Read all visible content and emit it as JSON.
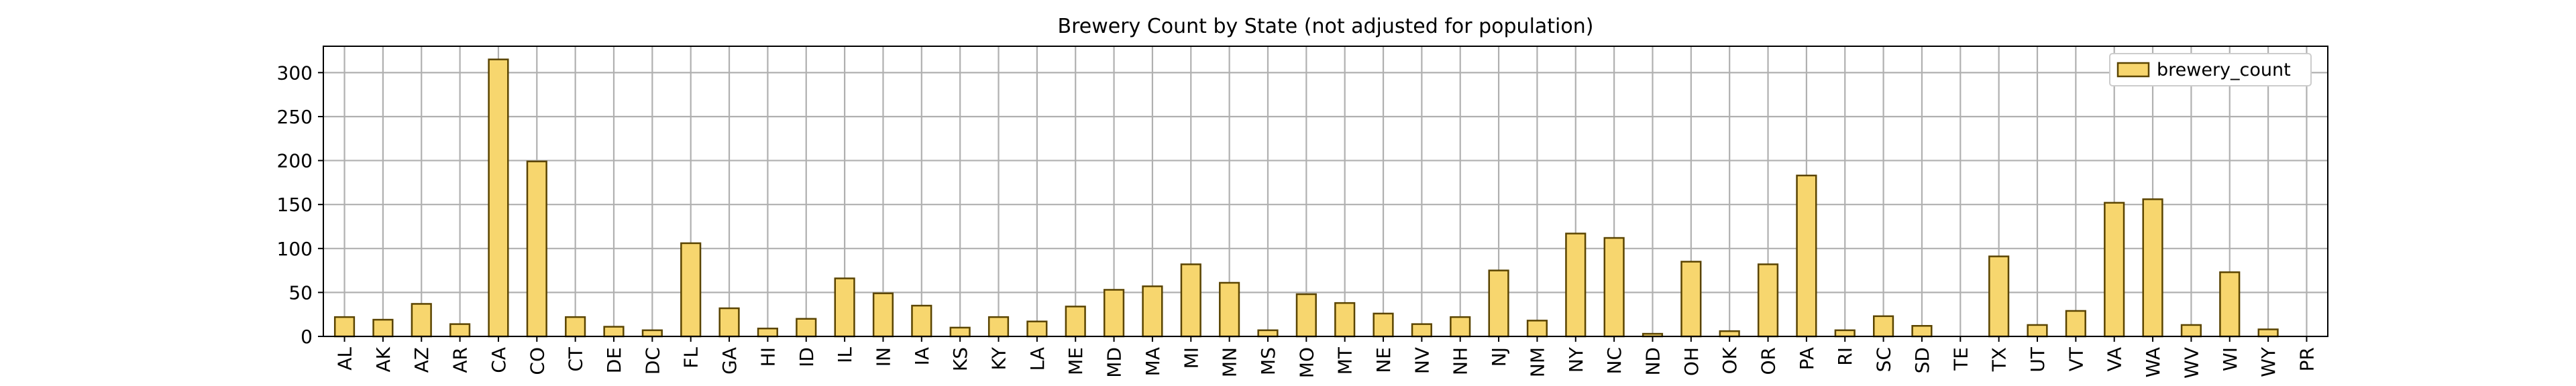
{
  "chart_data": {
    "type": "bar",
    "title": "Brewery Count by State (not adjusted for population)",
    "xlabel": "",
    "ylabel": "",
    "ylim": [
      0,
      330
    ],
    "yticks": [
      0,
      50,
      100,
      150,
      200,
      250,
      300
    ],
    "grid": true,
    "legend_position": "top-right",
    "bar_color": "#f7d66e",
    "edge_color": "#5a4400",
    "categories": [
      "AL",
      "AK",
      "AZ",
      "AR",
      "CA",
      "CO",
      "CT",
      "DE",
      "DC",
      "FL",
      "GA",
      "HI",
      "ID",
      "IL",
      "IN",
      "IA",
      "KS",
      "KY",
      "LA",
      "ME",
      "MD",
      "MA",
      "MI",
      "MN",
      "MS",
      "MO",
      "MT",
      "NE",
      "NV",
      "NH",
      "NJ",
      "NM",
      "NY",
      "NC",
      "ND",
      "OH",
      "OK",
      "OR",
      "PA",
      "RI",
      "SC",
      "SD",
      "TE",
      "TX",
      "UT",
      "VT",
      "VA",
      "WA",
      "WV",
      "WI",
      "WY",
      "PR"
    ],
    "series": [
      {
        "name": "brewery_count",
        "values": [
          22,
          19,
          37,
          14,
          315,
          199,
          22,
          11,
          7,
          106,
          32,
          9,
          20,
          66,
          49,
          35,
          10,
          22,
          17,
          34,
          53,
          57,
          82,
          61,
          7,
          48,
          38,
          26,
          14,
          22,
          75,
          18,
          117,
          112,
          3,
          85,
          6,
          82,
          183,
          7,
          23,
          12,
          0,
          91,
          13,
          29,
          152,
          156,
          13,
          73,
          8,
          0
        ]
      }
    ]
  }
}
